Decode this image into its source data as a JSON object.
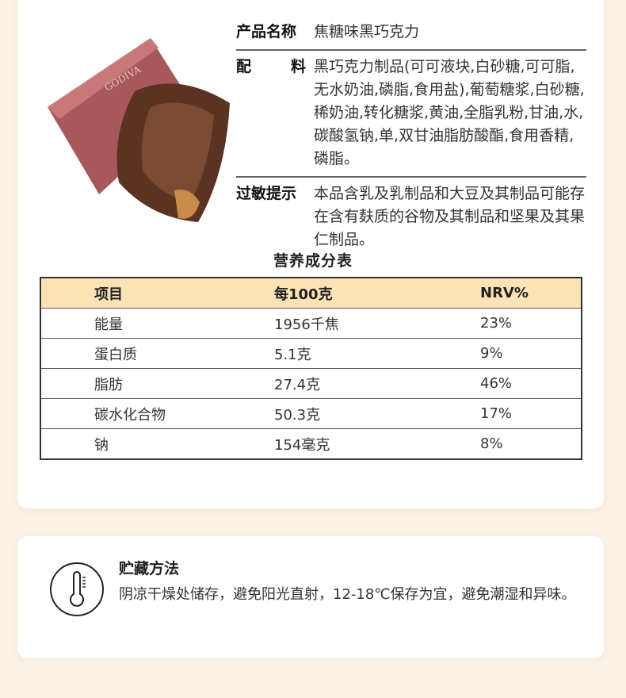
{
  "product_image": {
    "brand_logo": "GODIVA"
  },
  "info": {
    "name_label": [
      "产品名称"
    ],
    "name_label_text": "产品名称",
    "name_value": "焦糖味黑巧克力",
    "ingredients_label_1": "配",
    "ingredients_label_2": "料",
    "ingredients_value": "黑巧克力制品(可可液块,白砂糖,可可脂,无水奶油,磷脂,食用盐),葡萄糖浆,白砂糖,稀奶油,转化糖浆,黄油,全脂乳粉,甘油,水,碳酸氢钠,单,双甘油脂肪酸酯,食用香精,磷脂。",
    "allergen_label": "过敏提示",
    "allergen_value": "本品含乳及乳制品和大豆及其制品可能存在含有麸质的谷物及其制品和坚果及其果仁制品。"
  },
  "nutrition": {
    "title": "营养成分表",
    "headers": [
      "项目",
      "每100克",
      "NRV%"
    ],
    "rows": [
      [
        "能量",
        "1956千焦",
        "23%"
      ],
      [
        "蛋白质",
        "5.1克",
        "9%"
      ],
      [
        "脂肪",
        "27.4克",
        "46%"
      ],
      [
        "碳水化合物",
        "50.3克",
        "17%"
      ],
      [
        "钠",
        "154毫克",
        "8%"
      ]
    ],
    "header_color": "#fbe3b6"
  },
  "storage": {
    "icon": "thermometer-icon",
    "title": "贮藏方法",
    "text": "阴凉干燥处储存，避免阳光直射，12-18℃保存为宜，避免潮湿和异味。"
  }
}
